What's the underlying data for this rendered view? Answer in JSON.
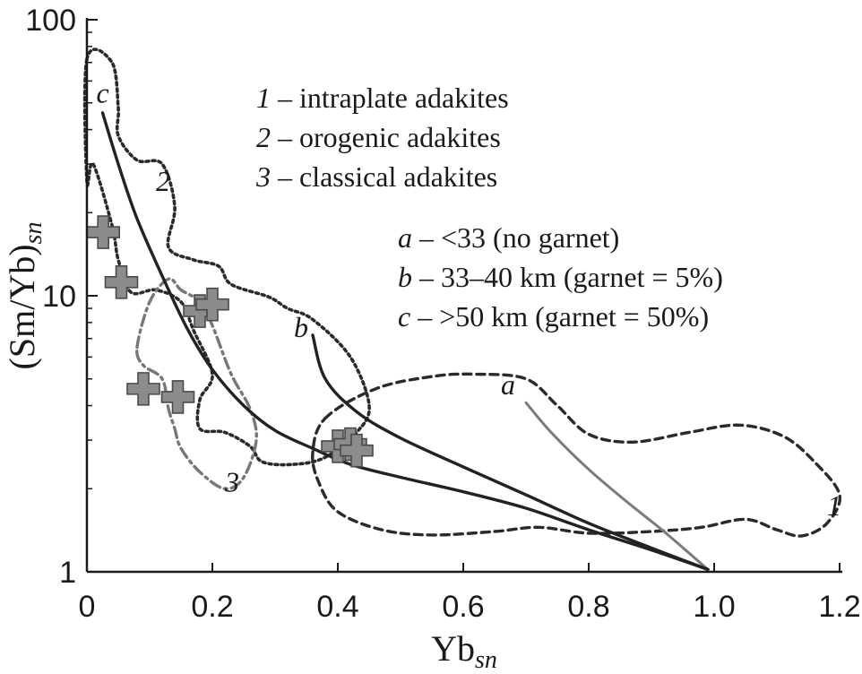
{
  "chart_data": {
    "type": "line",
    "title": "",
    "xlabel": "Yb",
    "xlabel_sub": "sn",
    "ylabel": "(Sm/Yb)",
    "ylabel_sub": "sn",
    "xlim": [
      0,
      1.2
    ],
    "ylim": [
      1,
      100
    ],
    "y_scale": "log",
    "x_ticks": [
      {
        "value": 0,
        "label": "0"
      },
      {
        "value": 0.2,
        "label": "0.2"
      },
      {
        "value": 0.4,
        "label": "0.4"
      },
      {
        "value": 0.6,
        "label": "0.6"
      },
      {
        "value": 0.8,
        "label": "0.8"
      },
      {
        "value": 1.0,
        "label": "1.0"
      },
      {
        "value": 1.2,
        "label": "1.2"
      }
    ],
    "y_ticks": [
      {
        "value": 1,
        "label": "1"
      },
      {
        "value": 10,
        "label": "10"
      },
      {
        "value": 100,
        "label": "100"
      }
    ],
    "legend_fields": [
      {
        "key": "1",
        "text": " – intraplate adakites"
      },
      {
        "key": "2",
        "text": " – orogenic adakites"
      },
      {
        "key": "3",
        "text": " – classical adakites"
      }
    ],
    "legend_curves": [
      {
        "key": "a",
        "text": " – <33 (no garnet)"
      },
      {
        "key": "b",
        "text": " – 33–40 km (garnet = 5%)"
      },
      {
        "key": "c",
        "text": " – >50 km (garnet = 50%)"
      }
    ],
    "fields": [
      {
        "name": "1",
        "label": "1",
        "style": "dashed",
        "color": "#2a2a2a",
        "label_at": [
          1.18,
          1.6
        ],
        "points": [
          [
            0.38,
            3.6
          ],
          [
            0.46,
            4.6
          ],
          [
            0.55,
            5.1
          ],
          [
            0.62,
            5.2
          ],
          [
            0.7,
            5.0
          ],
          [
            0.75,
            4.0
          ],
          [
            0.8,
            3.15
          ],
          [
            0.87,
            2.95
          ],
          [
            0.96,
            3.2
          ],
          [
            1.04,
            3.4
          ],
          [
            1.11,
            3.1
          ],
          [
            1.16,
            2.5
          ],
          [
            1.2,
            1.9
          ],
          [
            1.18,
            1.5
          ],
          [
            1.14,
            1.35
          ],
          [
            1.1,
            1.42
          ],
          [
            1.05,
            1.55
          ],
          [
            0.98,
            1.45
          ],
          [
            0.9,
            1.4
          ],
          [
            0.8,
            1.38
          ],
          [
            0.72,
            1.45
          ],
          [
            0.65,
            1.4
          ],
          [
            0.55,
            1.36
          ],
          [
            0.47,
            1.42
          ],
          [
            0.4,
            1.65
          ],
          [
            0.37,
            2.1
          ],
          [
            0.36,
            2.7
          ]
        ]
      },
      {
        "name": "2",
        "label": "2",
        "style": "dotted",
        "color": "#2a2a2a",
        "label_at": [
          0.11,
          24
        ],
        "points": [
          [
            0.0,
            72
          ],
          [
            0.04,
            70
          ],
          [
            0.05,
            48
          ],
          [
            0.05,
            38
          ],
          [
            0.08,
            31
          ],
          [
            0.12,
            30
          ],
          [
            0.14,
            21
          ],
          [
            0.13,
            15
          ],
          [
            0.17,
            13.5
          ],
          [
            0.21,
            12.8
          ],
          [
            0.23,
            11
          ],
          [
            0.29,
            9.9
          ],
          [
            0.32,
            9.0
          ],
          [
            0.36,
            8.2
          ],
          [
            0.42,
            6.0
          ],
          [
            0.45,
            4.0
          ],
          [
            0.43,
            3.2
          ],
          [
            0.38,
            2.6
          ],
          [
            0.33,
            2.45
          ],
          [
            0.28,
            2.5
          ],
          [
            0.26,
            2.85
          ],
          [
            0.22,
            3.2
          ],
          [
            0.18,
            3.3
          ],
          [
            0.18,
            4.2
          ],
          [
            0.2,
            5.2
          ],
          [
            0.17,
            7.5
          ],
          [
            0.15,
            9.5
          ],
          [
            0.11,
            10.5
          ],
          [
            0.07,
            10.3
          ],
          [
            0.05,
            13.5
          ],
          [
            0.04,
            18
          ],
          [
            0.01,
            30
          ],
          [
            0.0,
            26
          ]
        ]
      },
      {
        "name": "3",
        "label": "3",
        "style": "dashdot",
        "color": "#777777",
        "label_at": [
          0.22,
          1.95
        ],
        "points": [
          [
            0.08,
            6.5
          ],
          [
            0.1,
            9.5
          ],
          [
            0.13,
            11.5
          ],
          [
            0.15,
            10.5
          ],
          [
            0.18,
            9.5
          ],
          [
            0.2,
            7.8
          ],
          [
            0.23,
            5.2
          ],
          [
            0.26,
            3.9
          ],
          [
            0.27,
            3.0
          ],
          [
            0.25,
            2.2
          ],
          [
            0.22,
            2.0
          ],
          [
            0.18,
            2.3
          ],
          [
            0.15,
            2.8
          ],
          [
            0.14,
            3.3
          ],
          [
            0.13,
            3.9
          ],
          [
            0.12,
            5.0
          ],
          [
            0.09,
            5.6
          ]
        ]
      }
    ],
    "series": [
      {
        "name": "a",
        "label": "a",
        "color": "#7a7a7a",
        "width": 3,
        "label_at": [
          0.66,
          4.4
        ],
        "points": [
          [
            0.7,
            4.1
          ],
          [
            0.74,
            3.2
          ],
          [
            0.8,
            2.35
          ],
          [
            0.86,
            1.8
          ],
          [
            0.92,
            1.4
          ],
          [
            0.99,
            1.02
          ]
        ]
      },
      {
        "name": "b",
        "label": "b",
        "color": "#222222",
        "width": 3.4,
        "label_at": [
          0.33,
          7.1
        ],
        "points": [
          [
            0.36,
            7.2
          ],
          [
            0.38,
            5.0
          ],
          [
            0.43,
            3.8
          ],
          [
            0.5,
            3.05
          ],
          [
            0.6,
            2.4
          ],
          [
            0.7,
            1.9
          ],
          [
            0.8,
            1.5
          ],
          [
            0.9,
            1.22
          ],
          [
            0.99,
            1.02
          ]
        ]
      },
      {
        "name": "c",
        "label": "c",
        "color": "#222222",
        "width": 3.4,
        "label_at": [
          0.015,
          50
        ],
        "points": [
          [
            0.025,
            46
          ],
          [
            0.05,
            30
          ],
          [
            0.08,
            19
          ],
          [
            0.12,
            11.8
          ],
          [
            0.16,
            7.6
          ],
          [
            0.2,
            5.4
          ],
          [
            0.25,
            4.0
          ],
          [
            0.3,
            3.25
          ],
          [
            0.36,
            2.8
          ],
          [
            0.42,
            2.45
          ],
          [
            0.5,
            2.2
          ],
          [
            0.6,
            1.95
          ],
          [
            0.7,
            1.7
          ],
          [
            0.8,
            1.42
          ],
          [
            0.9,
            1.2
          ],
          [
            0.99,
            1.02
          ]
        ]
      }
    ],
    "markers": {
      "name": "samples",
      "shape": "plus",
      "color": "#8c8c8c",
      "edge": "#4a4a4a",
      "points": [
        [
          0.026,
          17
        ],
        [
          0.055,
          11.2
        ],
        [
          0.09,
          4.6
        ],
        [
          0.145,
          4.3
        ],
        [
          0.18,
          8.8
        ],
        [
          0.2,
          9.3
        ],
        [
          0.4,
          2.85
        ],
        [
          0.42,
          2.9
        ],
        [
          0.43,
          2.75
        ]
      ]
    }
  }
}
